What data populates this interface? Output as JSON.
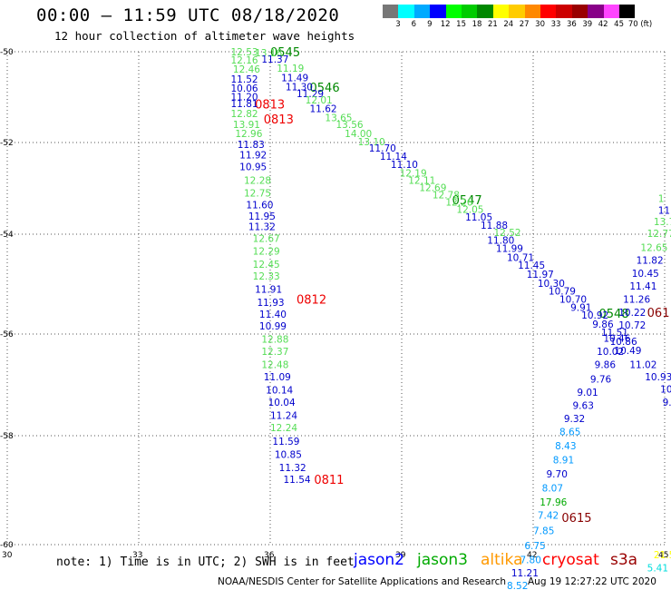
{
  "header": {
    "title": "00:00 – 11:59 UTC 08/18/2020",
    "subtitle": "12 hour collection of altimeter wave heights"
  },
  "legend_scale": {
    "colors": [
      "#777777",
      "#00ffff",
      "#00aaff",
      "#0000ff",
      "#00ff00",
      "#00cc00",
      "#008800",
      "#ffff00",
      "#ffcc00",
      "#ff8800",
      "#ff0000",
      "#cc0000",
      "#990000",
      "#880088",
      "#ff44ff",
      "#000000"
    ],
    "labels": [
      "3",
      "6",
      "9",
      "12",
      "15",
      "18",
      "21",
      "24",
      "27",
      "30",
      "33",
      "36",
      "39",
      "42",
      "45",
      "70 (ft)"
    ]
  },
  "chart_data": {
    "type": "scatter",
    "title": "",
    "xlim": [
      30,
      45
    ],
    "ylim": [
      -60,
      -50
    ],
    "x_ticks": [
      "30",
      "33",
      "36",
      "39",
      "42",
      "45"
    ],
    "y_ticks": [
      "-50",
      "-52",
      "-54",
      "-56",
      "-58",
      "-60"
    ],
    "x_tick_values": [
      30,
      33,
      36,
      39,
      42,
      45
    ],
    "y_tick_values": [
      -50,
      -52,
      -54,
      -56,
      -58,
      -60
    ],
    "grid": true,
    "points": [
      {
        "x": 35.1,
        "y": -50.0,
        "t": "12.53",
        "c": "#55dd55"
      },
      {
        "x": 35.65,
        "y": -50.02,
        "t": "13.16",
        "c": "#55dd55"
      },
      {
        "x": 35.1,
        "y": -50.18,
        "t": "12.16",
        "c": "#55dd55"
      },
      {
        "x": 35.8,
        "y": -50.16,
        "t": "11.37",
        "c": "#0000cc"
      },
      {
        "x": 35.15,
        "y": -50.38,
        "t": "12.46",
        "c": "#55dd55"
      },
      {
        "x": 36.15,
        "y": -50.36,
        "t": "11.19",
        "c": "#55dd55"
      },
      {
        "x": 35.1,
        "y": -50.6,
        "t": "11.52",
        "c": "#0000cc"
      },
      {
        "x": 36.25,
        "y": -50.57,
        "t": "11.49",
        "c": "#0000cc"
      },
      {
        "x": 35.1,
        "y": -50.8,
        "t": "10.06",
        "c": "#0000cc"
      },
      {
        "x": 36.35,
        "y": -50.77,
        "t": "11.30",
        "c": "#0000cc"
      },
      {
        "x": 36.6,
        "y": -50.92,
        "t": "11.29",
        "c": "#0000cc"
      },
      {
        "x": 35.1,
        "y": -50.99,
        "t": "11.20",
        "c": "#0000cc"
      },
      {
        "x": 36.8,
        "y": -51.06,
        "t": "12.01",
        "c": "#55dd55"
      },
      {
        "x": 35.1,
        "y": -51.14,
        "t": "11.81",
        "c": "#0000cc"
      },
      {
        "x": 36.9,
        "y": -51.25,
        "t": "11.62",
        "c": "#0000cc"
      },
      {
        "x": 35.1,
        "y": -51.36,
        "t": "12.82",
        "c": "#55dd55"
      },
      {
        "x": 37.25,
        "y": -51.45,
        "t": "13.65",
        "c": "#55dd55"
      },
      {
        "x": 35.15,
        "y": -51.6,
        "t": "13.91",
        "c": "#55dd55"
      },
      {
        "x": 37.5,
        "y": -51.6,
        "t": "13.56",
        "c": "#55dd55"
      },
      {
        "x": 35.2,
        "y": -51.8,
        "t": "12.96",
        "c": "#55dd55"
      },
      {
        "x": 37.7,
        "y": -51.8,
        "t": "14.00",
        "c": "#55dd55"
      },
      {
        "x": 38.0,
        "y": -51.98,
        "t": "13.10",
        "c": "#55dd55"
      },
      {
        "x": 35.25,
        "y": -52.04,
        "t": "11.83",
        "c": "#0000cc"
      },
      {
        "x": 38.25,
        "y": -52.12,
        "t": "11.70",
        "c": "#0000cc"
      },
      {
        "x": 38.5,
        "y": -52.3,
        "t": "11.14",
        "c": "#0000cc"
      },
      {
        "x": 35.3,
        "y": -52.27,
        "t": "11.92",
        "c": "#0000cc"
      },
      {
        "x": 38.75,
        "y": -52.48,
        "t": "11.10",
        "c": "#0000cc"
      },
      {
        "x": 35.3,
        "y": -52.52,
        "t": "10.95",
        "c": "#0000cc"
      },
      {
        "x": 38.95,
        "y": -52.66,
        "t": "12.19",
        "c": "#55dd55"
      },
      {
        "x": 35.4,
        "y": -52.82,
        "t": "12.28",
        "c": "#55dd55"
      },
      {
        "x": 39.15,
        "y": -52.82,
        "t": "12.11",
        "c": "#55dd55"
      },
      {
        "x": 39.4,
        "y": -52.98,
        "t": "12.69",
        "c": "#55dd55"
      },
      {
        "x": 35.4,
        "y": -53.1,
        "t": "12.75",
        "c": "#55dd55"
      },
      {
        "x": 39.7,
        "y": -53.14,
        "t": "12.78",
        "c": "#55dd55"
      },
      {
        "x": 40.0,
        "y": -53.3,
        "t": "12.26",
        "c": "#55dd55"
      },
      {
        "x": 35.45,
        "y": -53.36,
        "t": "11.60",
        "c": "#0000cc"
      },
      {
        "x": 40.25,
        "y": -53.46,
        "t": "12.05",
        "c": "#55dd55"
      },
      {
        "x": 35.5,
        "y": -53.6,
        "t": "11.95",
        "c": "#0000cc"
      },
      {
        "x": 40.45,
        "y": -53.62,
        "t": "11.05",
        "c": "#0000cc"
      },
      {
        "x": 35.5,
        "y": -53.83,
        "t": "11.32",
        "c": "#0000cc"
      },
      {
        "x": 40.8,
        "y": -53.8,
        "t": "11.88",
        "c": "#0000cc"
      },
      {
        "x": 41.1,
        "y": -53.96,
        "t": "12.52",
        "c": "#55dd55"
      },
      {
        "x": 35.6,
        "y": -54.08,
        "t": "12.67",
        "c": "#55dd55"
      },
      {
        "x": 40.95,
        "y": -54.12,
        "t": "11.80",
        "c": "#0000cc"
      },
      {
        "x": 41.15,
        "y": -54.28,
        "t": "11.99",
        "c": "#0000cc"
      },
      {
        "x": 35.6,
        "y": -54.34,
        "t": "12.29",
        "c": "#55dd55"
      },
      {
        "x": 41.4,
        "y": -54.46,
        "t": "10.71",
        "c": "#0000cc"
      },
      {
        "x": 35.6,
        "y": -54.6,
        "t": "12.45",
        "c": "#55dd55"
      },
      {
        "x": 41.65,
        "y": -54.62,
        "t": "11.45",
        "c": "#0000cc"
      },
      {
        "x": 35.6,
        "y": -54.84,
        "t": "12.33",
        "c": "#55dd55"
      },
      {
        "x": 41.85,
        "y": -54.8,
        "t": "11.97",
        "c": "#0000cc"
      },
      {
        "x": 42.1,
        "y": -54.98,
        "t": "10.30",
        "c": "#0000cc"
      },
      {
        "x": 35.65,
        "y": -55.1,
        "t": "11.91",
        "c": "#0000cc"
      },
      {
        "x": 42.35,
        "y": -55.14,
        "t": "10.79",
        "c": "#0000cc"
      },
      {
        "x": 35.7,
        "y": -55.36,
        "t": "11.93",
        "c": "#0000cc"
      },
      {
        "x": 42.6,
        "y": -55.3,
        "t": "10.70",
        "c": "#0000cc"
      },
      {
        "x": 42.85,
        "y": -55.46,
        "t": "9.91",
        "c": "#0000cc"
      },
      {
        "x": 35.75,
        "y": -55.6,
        "t": "11.40",
        "c": "#0000cc"
      },
      {
        "x": 43.1,
        "y": -55.62,
        "t": "10.92",
        "c": "#0000cc"
      },
      {
        "x": 35.75,
        "y": -55.84,
        "t": "10.99",
        "c": "#0000cc"
      },
      {
        "x": 43.35,
        "y": -55.8,
        "t": "9.86",
        "c": "#0000cc"
      },
      {
        "x": 35.8,
        "y": -56.1,
        "t": "12.88",
        "c": "#55dd55"
      },
      {
        "x": 43.55,
        "y": -55.96,
        "t": "11.51",
        "c": "#0000cc"
      },
      {
        "x": 35.8,
        "y": -56.34,
        "t": "12.37",
        "c": "#55dd55"
      },
      {
        "x": 43.75,
        "y": -56.14,
        "t": "10.86",
        "c": "#0000cc"
      },
      {
        "x": 35.8,
        "y": -56.6,
        "t": "12.48",
        "c": "#55dd55"
      },
      {
        "x": 43.85,
        "y": -56.32,
        "t": "10.49",
        "c": "#0000cc"
      },
      {
        "x": 35.85,
        "y": -56.84,
        "t": "11.09",
        "c": "#0000cc"
      },
      {
        "x": 43.4,
        "y": -56.6,
        "t": "9.86",
        "c": "#0000cc"
      },
      {
        "x": 35.9,
        "y": -57.1,
        "t": "10.14",
        "c": "#0000cc"
      },
      {
        "x": 43.3,
        "y": -56.88,
        "t": "9.76",
        "c": "#0000cc"
      },
      {
        "x": 35.95,
        "y": -57.34,
        "t": "10.04",
        "c": "#0000cc"
      },
      {
        "x": 43.0,
        "y": -57.14,
        "t": "9.01",
        "c": "#0000cc"
      },
      {
        "x": 36.0,
        "y": -57.6,
        "t": "11.24",
        "c": "#0000cc"
      },
      {
        "x": 42.9,
        "y": -57.4,
        "t": "9.63",
        "c": "#0000cc"
      },
      {
        "x": 36.0,
        "y": -57.84,
        "t": "12.24",
        "c": "#55dd55"
      },
      {
        "x": 42.7,
        "y": -57.66,
        "t": "9.32",
        "c": "#0000cc"
      },
      {
        "x": 36.05,
        "y": -58.1,
        "t": "11.59",
        "c": "#0000cc"
      },
      {
        "x": 42.6,
        "y": -57.92,
        "t": "8.65",
        "c": "#0099ff"
      },
      {
        "x": 36.1,
        "y": -58.34,
        "t": "10.85",
        "c": "#0000cc"
      },
      {
        "x": 42.5,
        "y": -58.18,
        "t": "8.43",
        "c": "#0099ff"
      },
      {
        "x": 36.2,
        "y": -58.58,
        "t": "11.32",
        "c": "#0000cc"
      },
      {
        "x": 42.45,
        "y": -58.44,
        "t": "8.91",
        "c": "#0099ff"
      },
      {
        "x": 36.3,
        "y": -58.8,
        "t": "11.54",
        "c": "#0000cc"
      },
      {
        "x": 42.3,
        "y": -58.7,
        "t": "9.70",
        "c": "#0000cc"
      },
      {
        "x": 42.2,
        "y": -58.96,
        "t": "8.07",
        "c": "#0099ff"
      },
      {
        "x": 42.15,
        "y": -59.22,
        "t": "17.96",
        "c": "#00aa00"
      },
      {
        "x": 42.1,
        "y": -59.46,
        "t": "7.42",
        "c": "#0099ff"
      },
      {
        "x": 42.0,
        "y": -59.74,
        "t": "7.85",
        "c": "#0099ff"
      },
      {
        "x": 41.8,
        "y": -60.02,
        "t": "6.75",
        "c": "#0099ff"
      },
      {
        "x": 41.7,
        "y": -60.3,
        "t": "7.80",
        "c": "#0099ff"
      },
      {
        "x": 41.5,
        "y": -60.56,
        "t": "11.21",
        "c": "#0000cc"
      },
      {
        "x": 41.4,
        "y": -60.82,
        "t": "8.52",
        "c": "#0099ff"
      },
      {
        "x": 44.85,
        "y": -53.22,
        "t": "1",
        "c": "#55dd55"
      },
      {
        "x": 44.85,
        "y": -53.48,
        "t": "11",
        "c": "#0000cc"
      },
      {
        "x": 44.75,
        "y": -53.72,
        "t": "13.7",
        "c": "#55dd55"
      },
      {
        "x": 44.6,
        "y": -53.98,
        "t": "12.77",
        "c": "#55dd55"
      },
      {
        "x": 44.45,
        "y": -54.26,
        "t": "12.65",
        "c": "#55dd55"
      },
      {
        "x": 44.35,
        "y": -54.52,
        "t": "11.82",
        "c": "#0000cc"
      },
      {
        "x": 44.25,
        "y": -54.78,
        "t": "10.45",
        "c": "#0000cc"
      },
      {
        "x": 44.2,
        "y": -55.04,
        "t": "11.41",
        "c": "#0000cc"
      },
      {
        "x": 44.05,
        "y": -55.3,
        "t": "11.26",
        "c": "#0000cc"
      },
      {
        "x": 43.95,
        "y": -55.56,
        "t": "10.22",
        "c": "#0000cc"
      },
      {
        "x": 43.95,
        "y": -55.82,
        "t": "10.72",
        "c": "#0000cc"
      },
      {
        "x": 43.6,
        "y": -56.08,
        "t": "10.46",
        "c": "#0000cc"
      },
      {
        "x": 43.45,
        "y": -56.34,
        "t": "10.02",
        "c": "#0000cc"
      },
      {
        "x": 44.2,
        "y": -56.6,
        "t": "11.02",
        "c": "#0000cc"
      },
      {
        "x": 44.55,
        "y": -56.84,
        "t": "10.93",
        "c": "#0000cc"
      },
      {
        "x": 44.9,
        "y": -57.08,
        "t": "10.50",
        "c": "#0000cc"
      },
      {
        "x": 44.95,
        "y": -57.34,
        "t": "9.7",
        "c": "#0000cc"
      },
      {
        "x": 44.6,
        "y": -60.46,
        "t": "5.41",
        "c": "#00dddd"
      },
      {
        "x": 44.75,
        "y": -60.2,
        "t": "21.5",
        "c": "#ffff00"
      }
    ],
    "pass_labels": [
      {
        "x": 36.0,
        "y": -50.0,
        "t": "0545",
        "c": "#008800"
      },
      {
        "x": 36.9,
        "y": -50.78,
        "t": "0546",
        "c": "#008800"
      },
      {
        "x": 35.65,
        "y": -51.15,
        "t": "0813",
        "c": "#ee0000"
      },
      {
        "x": 35.85,
        "y": -51.48,
        "t": "0813",
        "c": "#ee0000"
      },
      {
        "x": 40.15,
        "y": -53.25,
        "t": "0547",
        "c": "#008800"
      },
      {
        "x": 36.6,
        "y": -55.3,
        "t": "0812",
        "c": "#ee0000"
      },
      {
        "x": 43.5,
        "y": -55.58,
        "t": "0548",
        "c": "#008800"
      },
      {
        "x": 44.6,
        "y": -55.56,
        "t": "061",
        "c": "#880000"
      },
      {
        "x": 37.0,
        "y": -58.8,
        "t": "0811",
        "c": "#ee0000"
      },
      {
        "x": 42.65,
        "y": -59.5,
        "t": "0615",
        "c": "#880000"
      }
    ]
  },
  "footer": {
    "note": "note: 1) Time is in UTC; 2) SWH is in feet",
    "sat_jason2": "jason2",
    "sat_jason3": "jason3",
    "sat_altika": "altika",
    "sat_cryosat": "cryosat",
    "sat_s3a": "s3a",
    "credit": "NOAA/NESDIS Center for Satellite Applications and Research",
    "timestamp": "Aug 19 12:27:22 UTC 2020"
  },
  "colors": {
    "jason2": "#0000ff",
    "jason3": "#00aa00",
    "altika": "#ff9900",
    "cryosat": "#ff0000",
    "s3a": "#990000"
  }
}
